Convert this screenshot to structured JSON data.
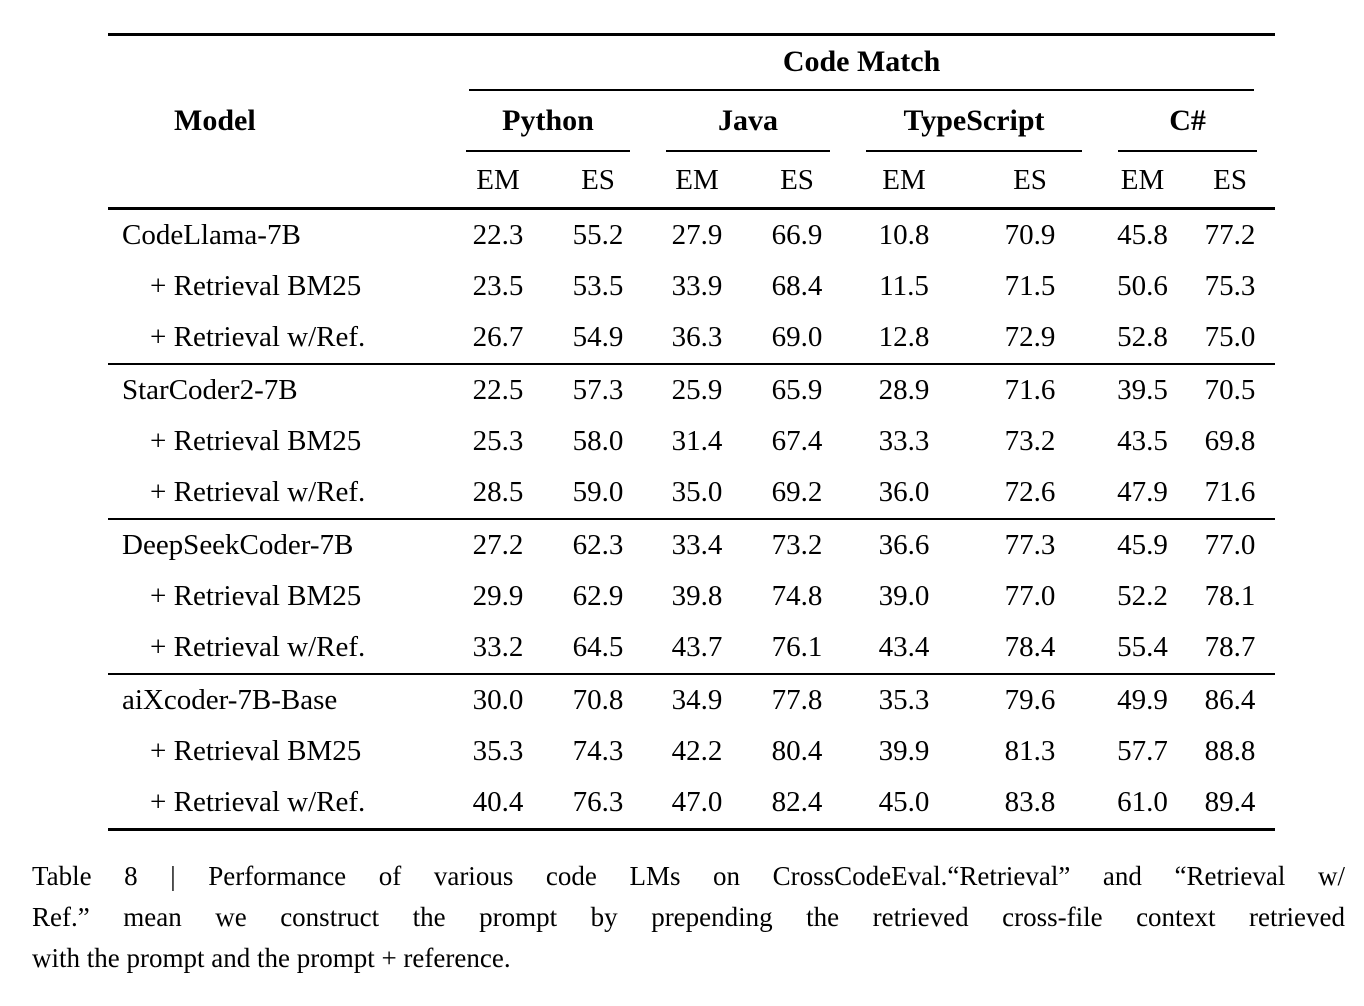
{
  "table": {
    "span_header": "Code Match",
    "model_header": "Model",
    "groups": [
      "Python",
      "Java",
      "TypeScript",
      "C#"
    ],
    "subheaders": [
      "EM",
      "ES"
    ],
    "sections": [
      {
        "rows": [
          {
            "model": "CodeLlama-7B",
            "indent": false,
            "values": [
              "22.3",
              "55.2",
              "27.9",
              "66.9",
              "10.8",
              "70.9",
              "45.8",
              "77.2"
            ]
          },
          {
            "model": "+ Retrieval BM25",
            "indent": true,
            "values": [
              "23.5",
              "53.5",
              "33.9",
              "68.4",
              "11.5",
              "71.5",
              "50.6",
              "75.3"
            ]
          },
          {
            "model": "+ Retrieval w/Ref.",
            "indent": true,
            "values": [
              "26.7",
              "54.9",
              "36.3",
              "69.0",
              "12.8",
              "72.9",
              "52.8",
              "75.0"
            ]
          }
        ]
      },
      {
        "rows": [
          {
            "model": "StarCoder2-7B",
            "indent": false,
            "values": [
              "22.5",
              "57.3",
              "25.9",
              "65.9",
              "28.9",
              "71.6",
              "39.5",
              "70.5"
            ]
          },
          {
            "model": "+ Retrieval BM25",
            "indent": true,
            "values": [
              "25.3",
              "58.0",
              "31.4",
              "67.4",
              "33.3",
              "73.2",
              "43.5",
              "69.8"
            ]
          },
          {
            "model": "+ Retrieval w/Ref.",
            "indent": true,
            "values": [
              "28.5",
              "59.0",
              "35.0",
              "69.2",
              "36.0",
              "72.6",
              "47.9",
              "71.6"
            ]
          }
        ]
      },
      {
        "rows": [
          {
            "model": "DeepSeekCoder-7B",
            "indent": false,
            "values": [
              "27.2",
              "62.3",
              "33.4",
              "73.2",
              "36.6",
              "77.3",
              "45.9",
              "77.0"
            ]
          },
          {
            "model": "+ Retrieval BM25",
            "indent": true,
            "values": [
              "29.9",
              "62.9",
              "39.8",
              "74.8",
              "39.0",
              "77.0",
              "52.2",
              "78.1"
            ]
          },
          {
            "model": "+ Retrieval w/Ref.",
            "indent": true,
            "values": [
              "33.2",
              "64.5",
              "43.7",
              "76.1",
              "43.4",
              "78.4",
              "55.4",
              "78.7"
            ]
          }
        ]
      },
      {
        "rows": [
          {
            "model": "aiXcoder-7B-Base",
            "indent": false,
            "values": [
              "30.0",
              "70.8",
              "34.9",
              "77.8",
              "35.3",
              "79.6",
              "49.9",
              "86.4"
            ]
          },
          {
            "model": "+ Retrieval BM25",
            "indent": true,
            "values": [
              "35.3",
              "74.3",
              "42.2",
              "80.4",
              "39.9",
              "81.3",
              "57.7",
              "88.8"
            ]
          },
          {
            "model": "+ Retrieval w/Ref.",
            "indent": true,
            "values": [
              "40.4",
              "76.3",
              "47.0",
              "82.4",
              "45.0",
              "83.8",
              "61.0",
              "89.4"
            ]
          }
        ]
      }
    ]
  },
  "caption": {
    "lines": [
      "Table 8 | Performance of various code LMs on CrossCodeEval.“Retrieval” and “Retrieval w/",
      "Ref.” mean we construct the prompt by prepending the retrieved cross-file context retrieved",
      "with the prompt and the prompt + reference."
    ],
    "full_text": "Table 8 | Performance of various code LMs on CrossCodeEval.“Retrieval” and “Retrieval w/Ref.” mean we construct the prompt by prepending the retrieved cross-file context retrieved with the prompt and the prompt + reference."
  },
  "colors": {
    "text": "#000000",
    "background": "#ffffff",
    "rule": "#000000"
  }
}
